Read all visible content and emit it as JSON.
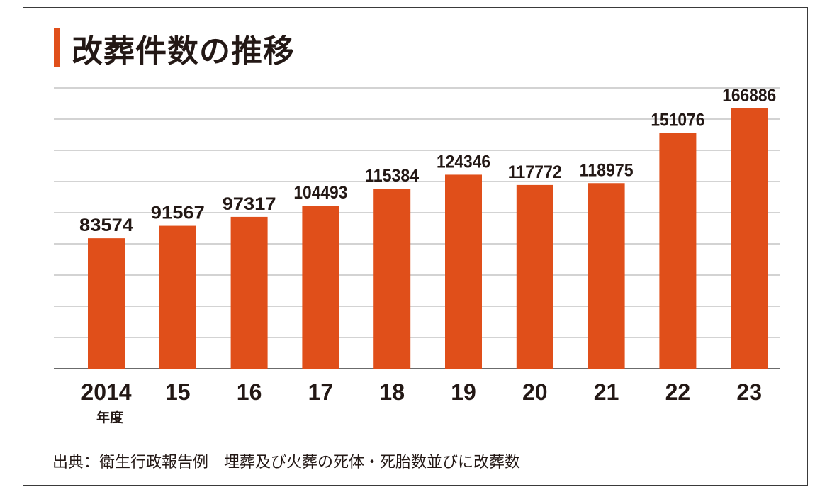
{
  "chart_data": {
    "type": "bar",
    "title": "改葬件数の推移",
    "categories": [
      "2014",
      "15",
      "16",
      "17",
      "18",
      "19",
      "20",
      "21",
      "22",
      "23"
    ],
    "category_unit": "年度",
    "values": [
      83574,
      91567,
      97317,
      104493,
      115384,
      124346,
      117772,
      118975,
      151076,
      166886
    ],
    "data_labels": [
      "83574",
      "91567",
      "97317",
      "104493",
      "115384",
      "124346",
      "117772",
      "118975",
      "151076",
      "166886"
    ],
    "ylim": [
      0,
      180000
    ],
    "grid": true,
    "bar_color": "#e04f1a",
    "source": "出典：衛生行政報告例　埋葬及び火葬の死体・死胎数並びに改葬数"
  }
}
